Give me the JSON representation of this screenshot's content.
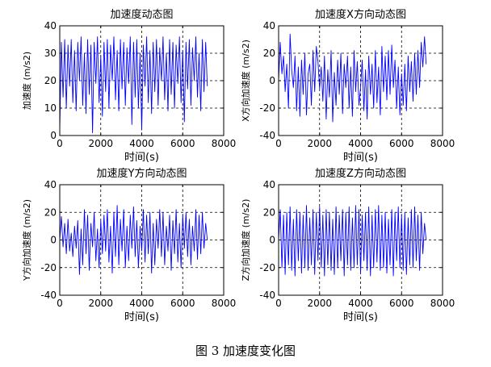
{
  "figure": {
    "caption": "图 3  加速度变化图"
  },
  "chart_data": [
    {
      "type": "line",
      "title": "加速度动态图",
      "xlabel": "时间(s)",
      "ylabel": "加速度 (m/s2)",
      "xlim": [
        0,
        8000
      ],
      "ylim": [
        0,
        40
      ],
      "xticks": [
        0,
        2000,
        4000,
        6000,
        8000
      ],
      "yticks": [
        0,
        10,
        20,
        30,
        40
      ],
      "grid": "dashed",
      "series": [
        {
          "color": "#0000ff",
          "x": [
            0,
            80,
            160,
            240,
            320,
            400,
            480,
            560,
            640,
            720,
            800,
            880,
            960,
            1040,
            1120,
            1200,
            1280,
            1360,
            1440,
            1520,
            1600,
            1680,
            1760,
            1840,
            1920,
            2000,
            2080,
            2160,
            2240,
            2320,
            2400,
            2480,
            2560,
            2640,
            2720,
            2800,
            2880,
            2960,
            3040,
            3120,
            3200,
            3280,
            3360,
            3440,
            3520,
            3600,
            3680,
            3760,
            3840,
            3920,
            4000,
            4080,
            4160,
            4240,
            4320,
            4400,
            4480,
            4560,
            4640,
            4720,
            4800,
            4880,
            4960,
            5040,
            5120,
            5200,
            5280,
            5360,
            5440,
            5520,
            5600,
            5680,
            5760,
            5840,
            5920,
            6000,
            6080,
            6160,
            6240,
            6320,
            6400,
            6480,
            6560,
            6640,
            6720,
            6800,
            6880,
            6960,
            7040,
            7120,
            7200
          ],
          "y": [
            2,
            34,
            14,
            35,
            10,
            33,
            18,
            35,
            12,
            31,
            9,
            34,
            20,
            36,
            11,
            30,
            8,
            35,
            15,
            33,
            1,
            34,
            19,
            36,
            12,
            29,
            7,
            34,
            16,
            35,
            10,
            33,
            20,
            36,
            13,
            31,
            9,
            35,
            17,
            34,
            11,
            32,
            19,
            36,
            4,
            34,
            14,
            35,
            10,
            30,
            2,
            33,
            18,
            36,
            12,
            31,
            8,
            34,
            16,
            35,
            11,
            32,
            20,
            36,
            13,
            30,
            9,
            35,
            15,
            34,
            10,
            33,
            19,
            36,
            12,
            31,
            5,
            34,
            17,
            35,
            11,
            32,
            20,
            36,
            14,
            30,
            9,
            35,
            16,
            34,
            18
          ]
        }
      ]
    },
    {
      "type": "line",
      "title": "加速度X方向动态图",
      "xlabel": "时间(s)",
      "ylabel": "X方向加速度 (m/s2)",
      "xlim": [
        0,
        8000
      ],
      "ylim": [
        -40,
        40
      ],
      "xticks": [
        0,
        2000,
        4000,
        6000,
        8000
      ],
      "yticks": [
        -40,
        -20,
        0,
        20,
        40
      ],
      "grid": "dashed",
      "series": [
        {
          "color": "#0000ff",
          "x": [
            0,
            80,
            160,
            240,
            320,
            400,
            480,
            560,
            640,
            720,
            800,
            880,
            960,
            1040,
            1120,
            1200,
            1280,
            1360,
            1440,
            1520,
            1600,
            1680,
            1760,
            1840,
            1920,
            2000,
            2080,
            2160,
            2240,
            2320,
            2400,
            2480,
            2560,
            2640,
            2720,
            2800,
            2880,
            2960,
            3040,
            3120,
            3200,
            3280,
            3360,
            3440,
            3520,
            3600,
            3680,
            3760,
            3840,
            3920,
            4000,
            4080,
            4160,
            4240,
            4320,
            4400,
            4480,
            4560,
            4640,
            4720,
            4800,
            4880,
            4960,
            5040,
            5120,
            5200,
            5280,
            5360,
            5440,
            5520,
            5600,
            5680,
            5760,
            5840,
            5920,
            6000,
            6080,
            6160,
            6240,
            6320,
            6400,
            6480,
            6560,
            6640,
            6720,
            6800,
            6880,
            6960,
            7040,
            7120,
            7200
          ],
          "y": [
            0,
            28,
            5,
            18,
            -8,
            12,
            -20,
            34,
            8,
            -5,
            18,
            -22,
            10,
            -26,
            15,
            -10,
            20,
            -25,
            5,
            12,
            -18,
            22,
            -8,
            25,
            14,
            -6,
            10,
            -15,
            18,
            -28,
            8,
            -12,
            22,
            -30,
            6,
            -18,
            15,
            -10,
            20,
            -24,
            12,
            -5,
            18,
            -20,
            10,
            -26,
            22,
            -8,
            14,
            -18,
            -5,
            15,
            -22,
            8,
            -28,
            18,
            -10,
            12,
            -20,
            22,
            -16,
            10,
            -25,
            25,
            -8,
            18,
            -14,
            22,
            -10,
            26,
            -5,
            15,
            -20,
            10,
            -25,
            5,
            -18,
            12,
            -22,
            18,
            -8,
            14,
            -15,
            20,
            -10,
            22,
            -5,
            28,
            10,
            32,
            12
          ]
        }
      ]
    },
    {
      "type": "line",
      "title": "加速度Y方向动态图",
      "xlabel": "时间(s)",
      "ylabel": "Y方向加速度 (m/s2)",
      "xlim": [
        0,
        8000
      ],
      "ylim": [
        -40,
        40
      ],
      "xticks": [
        0,
        2000,
        4000,
        6000,
        8000
      ],
      "yticks": [
        -40,
        -20,
        0,
        20,
        40
      ],
      "grid": "dashed",
      "series": [
        {
          "color": "#0000ff",
          "x": [
            0,
            80,
            160,
            240,
            320,
            400,
            480,
            560,
            640,
            720,
            800,
            880,
            960,
            1040,
            1120,
            1200,
            1280,
            1360,
            1440,
            1520,
            1600,
            1680,
            1760,
            1840,
            1920,
            2000,
            2080,
            2160,
            2240,
            2320,
            2400,
            2480,
            2560,
            2640,
            2720,
            2800,
            2880,
            2960,
            3040,
            3120,
            3200,
            3280,
            3360,
            3440,
            3520,
            3600,
            3680,
            3760,
            3840,
            3920,
            4000,
            4080,
            4160,
            4240,
            4320,
            4400,
            4480,
            4560,
            4640,
            4720,
            4800,
            4880,
            4960,
            5040,
            5120,
            5200,
            5280,
            5360,
            5440,
            5520,
            5600,
            5680,
            5760,
            5840,
            5920,
            6000,
            6080,
            6160,
            6240,
            6320,
            6400,
            6480,
            6560,
            6640,
            6720,
            6800,
            6880,
            6960,
            7040,
            7120,
            7200
          ],
          "y": [
            0,
            17,
            -5,
            12,
            -10,
            15,
            -8,
            5,
            -12,
            10,
            -6,
            14,
            -25,
            8,
            -18,
            22,
            -10,
            18,
            -22,
            12,
            -5,
            20,
            -15,
            8,
            -20,
            14,
            -10,
            18,
            -8,
            22,
            -16,
            10,
            -24,
            20,
            -12,
            25,
            -18,
            15,
            -8,
            22,
            -20,
            10,
            -15,
            18,
            -6,
            24,
            -12,
            14,
            -20,
            10,
            -8,
            22,
            -16,
            18,
            -10,
            20,
            -24,
            12,
            -18,
            15,
            -6,
            22,
            -12,
            20,
            -18,
            10,
            -8,
            18,
            -22,
            14,
            -10,
            22,
            -16,
            12,
            -20,
            18,
            -6,
            20,
            -12,
            15,
            -18,
            10,
            -8,
            22,
            -14,
            18,
            -10,
            20,
            -6,
            12,
            0
          ]
        }
      ]
    },
    {
      "type": "line",
      "title": "加速度Z方向动态图",
      "xlabel": "时间(s)",
      "ylabel": "Z方向加速度 (m/s2)",
      "xlim": [
        0,
        8000
      ],
      "ylim": [
        -40,
        40
      ],
      "xticks": [
        0,
        2000,
        4000,
        6000,
        8000
      ],
      "yticks": [
        -40,
        -20,
        0,
        20,
        40
      ],
      "grid": "dashed",
      "series": [
        {
          "color": "#0000ff",
          "x": [
            0,
            80,
            160,
            240,
            320,
            400,
            480,
            560,
            640,
            720,
            800,
            880,
            960,
            1040,
            1120,
            1200,
            1280,
            1360,
            1440,
            1520,
            1600,
            1680,
            1760,
            1840,
            1920,
            2000,
            2080,
            2160,
            2240,
            2320,
            2400,
            2480,
            2560,
            2640,
            2720,
            2800,
            2880,
            2960,
            3040,
            3120,
            3200,
            3280,
            3360,
            3440,
            3520,
            3600,
            3680,
            3760,
            3840,
            3920,
            4000,
            4080,
            4160,
            4240,
            4320,
            4400,
            4480,
            4560,
            4640,
            4720,
            4800,
            4880,
            4960,
            5040,
            5120,
            5200,
            5280,
            5360,
            5440,
            5520,
            5600,
            5680,
            5760,
            5840,
            5920,
            6000,
            6080,
            6160,
            6240,
            6320,
            6400,
            6480,
            6560,
            6640,
            6720,
            6800,
            6880,
            6960,
            7040,
            7120,
            7200
          ],
          "y": [
            0,
            22,
            -20,
            18,
            -25,
            20,
            -18,
            24,
            -22,
            15,
            -26,
            22,
            -15,
            20,
            -24,
            18,
            -20,
            25,
            -22,
            16,
            -18,
            22,
            -25,
            20,
            -15,
            24,
            -20,
            18,
            -26,
            22,
            -18,
            20,
            -22,
            15,
            -25,
            24,
            -20,
            18,
            -15,
            22,
            -26,
            20,
            -18,
            24,
            -22,
            16,
            -20,
            25,
            -18,
            22,
            -24,
            18,
            -15,
            20,
            -22,
            24,
            -26,
            18,
            -20,
            22,
            -16,
            25,
            -22,
            18,
            -20,
            20,
            -24,
            15,
            -18,
            22,
            -26,
            20,
            -15,
            24,
            -20,
            18,
            -22,
            20,
            -25,
            16,
            -18,
            22,
            -20,
            24,
            -15,
            18,
            -22,
            20,
            -10,
            12,
            0
          ]
        }
      ]
    }
  ]
}
